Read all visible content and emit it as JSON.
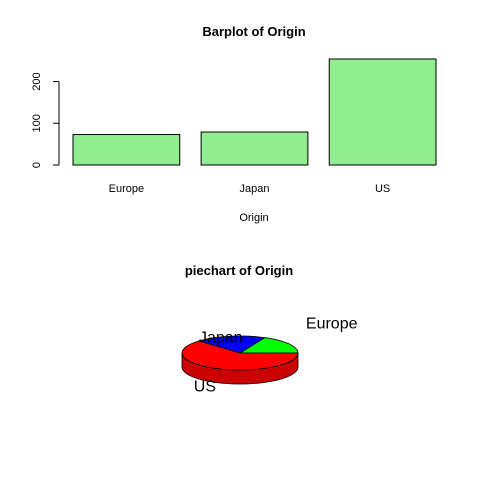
{
  "chart_data": [
    {
      "type": "bar",
      "title": "Barplot of Origin",
      "xlabel": "Origin",
      "ylabel": "",
      "categories": [
        "Europe",
        "Japan",
        "US"
      ],
      "values": [
        73,
        79,
        254
      ],
      "ylim": [
        0,
        254
      ],
      "yticks": [
        0,
        100,
        200
      ],
      "bar_color": "#90ee90",
      "grid": false
    },
    {
      "type": "pie",
      "title": "piechart of Origin",
      "categories": [
        "Europe",
        "Japan",
        "US"
      ],
      "values": [
        73,
        79,
        254
      ],
      "labels": [
        "Europe",
        "Japan",
        "US"
      ],
      "colors": [
        "#00ff00",
        "#0000ff",
        "#ff0000"
      ],
      "style": "3d"
    }
  ]
}
